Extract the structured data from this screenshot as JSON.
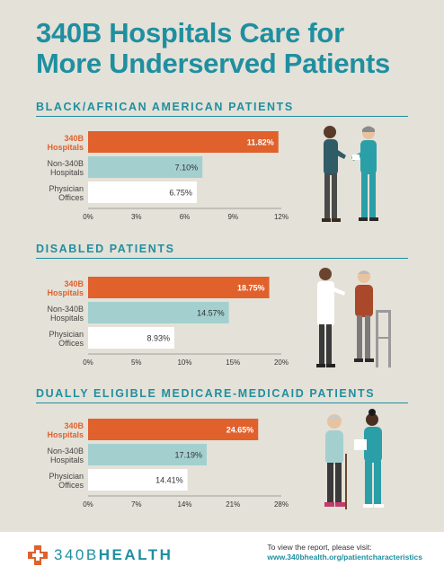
{
  "title_line1": "340B Hospitals Care for",
  "title_line2": "More Underserved Patients",
  "colors": {
    "teal": "#1f8fa0",
    "orange": "#e0612c",
    "lightteal": "#a3cfcf",
    "white": "#ffffff"
  },
  "chart_data": [
    {
      "type": "bar",
      "title": "BLACK/AFRICAN AMERICAN PATIENTS",
      "categories": [
        [
          "340B",
          "Hospitals"
        ],
        [
          "Non-340B",
          "Hospitals"
        ],
        [
          "Physician",
          "Offices"
        ]
      ],
      "values": [
        11.82,
        7.1,
        6.75
      ],
      "value_labels": [
        "11.82%",
        "7.10%",
        "6.75%"
      ],
      "ticks": [
        "0%",
        "3%",
        "6%",
        "9%",
        "12%"
      ],
      "xlim": [
        0,
        12
      ]
    },
    {
      "type": "bar",
      "title": "DISABLED PATIENTS",
      "categories": [
        [
          "340B",
          "Hospitals"
        ],
        [
          "Non-340B",
          "Hospitals"
        ],
        [
          "Physician",
          "Offices"
        ]
      ],
      "values": [
        18.75,
        14.57,
        8.93
      ],
      "value_labels": [
        "18.75%",
        "14.57%",
        "8.93%"
      ],
      "ticks": [
        "0%",
        "5%",
        "10%",
        "15%",
        "20%"
      ],
      "xlim": [
        0,
        20
      ]
    },
    {
      "type": "bar",
      "title": "DUALLY ELIGIBLE MEDICARE-MEDICAID PATIENTS",
      "categories": [
        [
          "340B",
          "Hospitals"
        ],
        [
          "Non-340B",
          "Hospitals"
        ],
        [
          "Physician",
          "Offices"
        ]
      ],
      "values": [
        24.65,
        17.19,
        14.41
      ],
      "value_labels": [
        "24.65%",
        "17.19%",
        "14.41%"
      ],
      "ticks": [
        "0%",
        "7%",
        "14%",
        "21%",
        "28%"
      ],
      "xlim": [
        0,
        28
      ]
    }
  ],
  "footer": {
    "logo_num": "340B",
    "logo_word": "HEALTH",
    "report_line": "To view the report, please visit:",
    "report_url": "www.340bhealth.org/patientcharacteristics"
  }
}
